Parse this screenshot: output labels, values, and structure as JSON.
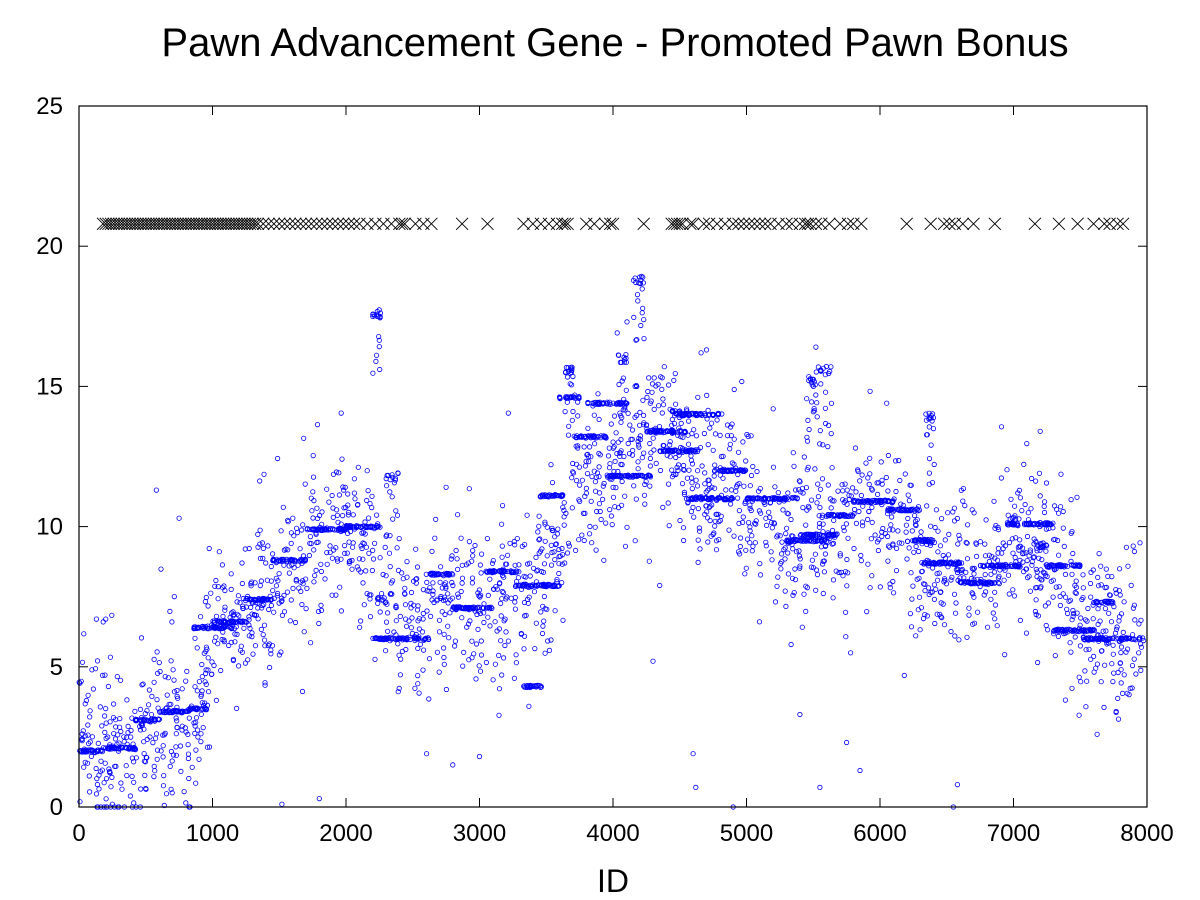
{
  "chart_data": {
    "type": "scatter",
    "title": "Pawn Advancement Gene - Promoted Pawn Bonus",
    "xlabel": "ID",
    "ylabel": "",
    "xlim": [
      0,
      8000
    ],
    "ylim": [
      0,
      25
    ],
    "xticks": [
      0,
      1000,
      2000,
      3000,
      4000,
      5000,
      6000,
      7000,
      8000
    ],
    "yticks": [
      0,
      5,
      10,
      15,
      20,
      25
    ],
    "grid": false,
    "legend": "none",
    "colors": {
      "points": "#0000ff",
      "markers": "#000000"
    },
    "series": [
      {
        "marker": "circle",
        "trend": [
          [
            0,
            3.5
          ],
          [
            100,
            1.8
          ],
          [
            200,
            1.9
          ],
          [
            300,
            2.0
          ],
          [
            400,
            1.8
          ],
          [
            500,
            2.6
          ],
          [
            600,
            3.0
          ],
          [
            700,
            3.3
          ],
          [
            800,
            2.4
          ],
          [
            900,
            3.0
          ],
          [
            1000,
            6.5
          ],
          [
            1200,
            6.5
          ],
          [
            1400,
            7.5
          ],
          [
            1600,
            8.9
          ],
          [
            1800,
            9.3
          ],
          [
            2000,
            10.1
          ],
          [
            2200,
            8.5
          ],
          [
            2400,
            6.4
          ],
          [
            2600,
            6.8
          ],
          [
            2800,
            7.6
          ],
          [
            3000,
            7.3
          ],
          [
            3200,
            7.8
          ],
          [
            3400,
            7.5
          ],
          [
            3600,
            9.0
          ],
          [
            3700,
            11.5
          ],
          [
            3900,
            12.5
          ],
          [
            4100,
            12.8
          ],
          [
            4300,
            13.2
          ],
          [
            4500,
            12.8
          ],
          [
            4700,
            11.6
          ],
          [
            4900,
            11.0
          ],
          [
            5100,
            10.5
          ],
          [
            5300,
            9.5
          ],
          [
            5500,
            10.2
          ],
          [
            5700,
            9.8
          ],
          [
            5900,
            10.8
          ],
          [
            6100,
            10.0
          ],
          [
            6300,
            8.8
          ],
          [
            6500,
            8.5
          ],
          [
            6700,
            8.3
          ],
          [
            6900,
            8.6
          ],
          [
            7100,
            9.8
          ],
          [
            7300,
            8.5
          ],
          [
            7500,
            6.5
          ],
          [
            7700,
            6.3
          ],
          [
            7950,
            5.8
          ]
        ],
        "spread": 1.6,
        "n": 2200,
        "plateaus": [
          [
            0,
            180,
            2.0
          ],
          [
            180,
            420,
            2.1
          ],
          [
            420,
            600,
            3.1
          ],
          [
            600,
            820,
            3.4
          ],
          [
            820,
            960,
            3.5
          ],
          [
            860,
            1180,
            6.4
          ],
          [
            1000,
            1250,
            6.6
          ],
          [
            1250,
            1450,
            7.4
          ],
          [
            1450,
            1700,
            8.8
          ],
          [
            1700,
            2000,
            9.9
          ],
          [
            2000,
            2250,
            10.0
          ],
          [
            2200,
            2620,
            6.0
          ],
          [
            2600,
            2800,
            8.3
          ],
          [
            2800,
            3100,
            7.1
          ],
          [
            3050,
            3300,
            8.4
          ],
          [
            3250,
            3600,
            7.9
          ],
          [
            3330,
            3470,
            4.3
          ],
          [
            3450,
            3650,
            11.1
          ],
          [
            3600,
            3750,
            14.6
          ],
          [
            3720,
            3950,
            13.2
          ],
          [
            3800,
            4100,
            14.4
          ],
          [
            3950,
            4300,
            11.8
          ],
          [
            4250,
            4550,
            13.4
          ],
          [
            4350,
            4620,
            12.7
          ],
          [
            4450,
            4800,
            14.0
          ],
          [
            4550,
            4900,
            11.0
          ],
          [
            4750,
            5000,
            12.0
          ],
          [
            5000,
            5400,
            11.0
          ],
          [
            5300,
            5600,
            9.5
          ],
          [
            5400,
            5700,
            9.7
          ],
          [
            5600,
            5800,
            10.4
          ],
          [
            5800,
            6100,
            10.9
          ],
          [
            6050,
            6300,
            10.6
          ],
          [
            6200,
            6400,
            9.5
          ],
          [
            6300,
            6600,
            8.7
          ],
          [
            6600,
            6900,
            8.0
          ],
          [
            6750,
            7050,
            8.6
          ],
          [
            6950,
            7300,
            10.1
          ],
          [
            7250,
            7500,
            8.6
          ],
          [
            7300,
            7600,
            6.3
          ],
          [
            7500,
            7950,
            6.0
          ],
          [
            7600,
            7750,
            7.3
          ]
        ],
        "clusters": [
          [
            4150,
            4230,
            18.8
          ],
          [
            2200,
            2260,
            17.6
          ],
          [
            4040,
            4110,
            16.0
          ],
          [
            5520,
            5640,
            15.6
          ],
          [
            6330,
            6420,
            13.9
          ],
          [
            7150,
            7250,
            9.3
          ],
          [
            2300,
            2400,
            11.8
          ],
          [
            3640,
            3700,
            15.6
          ],
          [
            4440,
            4520,
            14.0
          ],
          [
            5450,
            5520,
            15.2
          ]
        ],
        "outliers": [
          [
            580,
            11.3
          ],
          [
            750,
            10.3
          ],
          [
            200,
            6.7
          ],
          [
            130,
            6.7
          ],
          [
            2750,
            11.4
          ],
          [
            4600,
            1.9
          ],
          [
            4900,
            0.0
          ],
          [
            4780,
            13.8
          ],
          [
            5550,
            0.7
          ],
          [
            6550,
            0.0
          ],
          [
            6580,
            0.8
          ],
          [
            5850,
            1.3
          ],
          [
            5750,
            2.3
          ],
          [
            6050,
            14.4
          ],
          [
            4620,
            0.7
          ],
          [
            250,
            0.1
          ],
          [
            400,
            0.0
          ],
          [
            1520,
            0.1
          ],
          [
            1800,
            0.3
          ],
          [
            5400,
            3.3
          ],
          [
            4300,
            5.2
          ],
          [
            4350,
            7.9
          ],
          [
            7200,
            13.4
          ],
          [
            5200,
            14.2
          ],
          [
            5780,
            5.5
          ],
          [
            2800,
            1.5
          ],
          [
            3000,
            1.8
          ],
          [
            4660,
            16.2
          ],
          [
            4700,
            16.3
          ],
          [
            5520,
            16.4
          ]
        ]
      },
      {
        "marker": "x",
        "y": 20.8,
        "x": [
          180,
          200,
          220,
          240,
          260,
          280,
          300,
          320,
          340,
          360,
          380,
          400,
          420,
          440,
          460,
          480,
          500,
          520,
          540,
          560,
          580,
          600,
          620,
          640,
          660,
          680,
          700,
          720,
          740,
          760,
          780,
          800,
          820,
          840,
          860,
          880,
          900,
          920,
          940,
          960,
          980,
          1000,
          1020,
          1040,
          1060,
          1080,
          1100,
          1120,
          1140,
          1160,
          1180,
          1200,
          1220,
          1240,
          1260,
          1280,
          1300,
          1320,
          1340,
          1380,
          1420,
          1460,
          1500,
          1540,
          1580,
          1620,
          1660,
          1700,
          1740,
          1780,
          1820,
          1860,
          1900,
          1940,
          1980,
          2020,
          2060,
          2100,
          2160,
          2220,
          2280,
          2340,
          2400,
          2420,
          2440,
          2520,
          2580,
          2640,
          2870,
          3060,
          3330,
          3400,
          3460,
          3520,
          3580,
          3620,
          3640,
          3660,
          3800,
          3860,
          3940,
          3980,
          4000,
          4230,
          4440,
          4460,
          4480,
          4500,
          4520,
          4580,
          4600,
          4680,
          4720,
          4780,
          4840,
          4900,
          4940,
          4980,
          5020,
          5060,
          5100,
          5140,
          5180,
          5240,
          5300,
          5340,
          5400,
          5440,
          5460,
          5480,
          5520,
          5560,
          5620,
          5700,
          5760,
          5800,
          5860,
          6200,
          6380,
          6480,
          6520,
          6560,
          6620,
          6700,
          6860,
          7160,
          7340,
          7480,
          7600,
          7680,
          7720,
          7780,
          7820
        ]
      }
    ]
  }
}
